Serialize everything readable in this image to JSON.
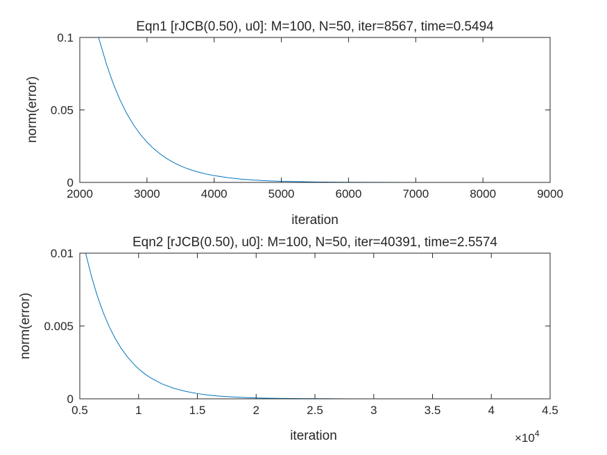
{
  "chart_data": [
    {
      "type": "line",
      "title": "Eqn1 [rJCB(0.50), u0]: M=100, N=50, iter=8567, time=0.5494",
      "xlabel": "iteration",
      "ylabel": "norm(error)",
      "xlim": [
        2000,
        9000
      ],
      "ylim": [
        0,
        0.1
      ],
      "xticks": [
        2000,
        3000,
        4000,
        5000,
        6000,
        7000,
        8000,
        9000
      ],
      "xtick_labels": [
        "2000",
        "3000",
        "4000",
        "5000",
        "6000",
        "7000",
        "8000",
        "9000"
      ],
      "yticks": [
        0,
        0.05,
        0.1
      ],
      "ytick_labels": [
        "0",
        "0.05",
        "0.1"
      ],
      "x_exponent_label": "",
      "grid": false,
      "series": [
        {
          "color": "#0072BD",
          "x": [
            2280,
            2400,
            2500,
            2600,
            2700,
            2800,
            2900,
            3000,
            3100,
            3200,
            3300,
            3400,
            3500,
            3600,
            3700,
            3800,
            3900,
            4000,
            4200,
            4400,
            4600,
            4800,
            5000,
            5500,
            6000,
            6500,
            7000,
            7500,
            8000,
            8567
          ],
          "y": [
            0.1,
            0.0811,
            0.0679,
            0.0568,
            0.0475,
            0.0397,
            0.0332,
            0.0278,
            0.0233,
            0.0195,
            0.0163,
            0.0136,
            0.0114,
            0.0095,
            0.008,
            0.0067,
            0.0056,
            0.0047,
            0.0033,
            0.0023,
            0.0016,
            0.0011,
            0.0008,
            0.0003,
            0.0001,
            4e-05,
            2e-05,
            1e-05,
            0.0,
            0.0
          ]
        }
      ]
    },
    {
      "type": "line",
      "title": "Eqn2 [rJCB(0.50), u0]: M=100, N=50, iter=40391, time=2.5574",
      "xlabel": "iteration",
      "ylabel": "norm(error)",
      "xlim": [
        5000,
        45000
      ],
      "ylim": [
        0,
        0.01
      ],
      "xticks": [
        5000,
        10000,
        15000,
        20000,
        25000,
        30000,
        35000,
        40000,
        45000
      ],
      "xtick_labels": [
        "0.5",
        "1",
        "1.5",
        "2",
        "2.5",
        "3",
        "3.5",
        "4",
        "4.5"
      ],
      "yticks": [
        0,
        0.005,
        0.01
      ],
      "ytick_labels": [
        "0",
        "0.005",
        "0.01"
      ],
      "x_exponent_label": "×10",
      "x_exponent_power": "4",
      "grid": false,
      "series": [
        {
          "color": "#0072BD",
          "x": [
            5500,
            6000,
            6500,
            7000,
            7500,
            8000,
            8500,
            9000,
            9500,
            10000,
            10500,
            11000,
            12000,
            13000,
            14000,
            15000,
            16000,
            17000,
            18000,
            19000,
            20000,
            22000,
            24000,
            26000,
            28000,
            30000,
            33000,
            36000,
            38000,
            40391
          ],
          "y": [
            0.01,
            0.00839,
            0.00704,
            0.00591,
            0.00496,
            0.00416,
            0.00349,
            0.00293,
            0.00246,
            0.00206,
            0.00173,
            0.00145,
            0.00102,
            0.00072,
            0.00051,
            0.00036,
            0.00025,
            0.00018,
            0.00013,
            9e-05,
            6e-05,
            3e-05,
            2e-05,
            1e-05,
            0.0,
            0.0,
            0.0,
            0.0,
            0.0,
            0.0
          ]
        }
      ]
    }
  ]
}
